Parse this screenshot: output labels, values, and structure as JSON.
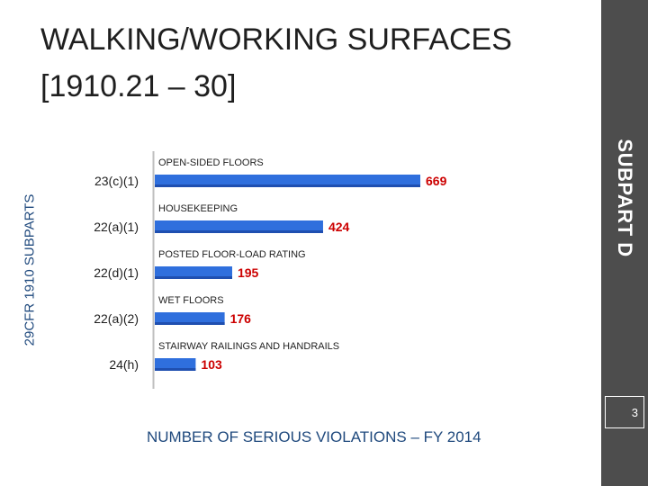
{
  "slide": {
    "title": "WALKING/WORKING SURFACES [1910.21 – 30]",
    "side_label": "SUBPART D",
    "page_number": "3"
  },
  "colors": {
    "bar": "#2f6fdd",
    "bar_dark": "#1f4fb0",
    "value_label": "#cc0000",
    "text_blue": "#1f497d",
    "sidebar": "#4d4d4d"
  },
  "chart_data": {
    "type": "bar",
    "orientation": "horizontal",
    "categories": [
      "23(c)(1)",
      "22(a)(1)",
      "22(d)(1)",
      "22(a)(2)",
      "24(h)"
    ],
    "annotations": [
      "OPEN-SIDED FLOORS",
      "HOUSEKEEPING",
      "POSTED FLOOR-LOAD RATING",
      "WET FLOORS",
      "STAIRWAY RAILINGS AND HANDRAILS"
    ],
    "values": [
      669,
      424,
      195,
      176,
      103
    ],
    "xlabel": "NUMBER OF SERIOUS VIOLATIONS – FY 2014",
    "ylabel": "29CFR 1910 SUBPARTS",
    "xlim": [
      0,
      669
    ],
    "grid": false,
    "legend": "none"
  }
}
